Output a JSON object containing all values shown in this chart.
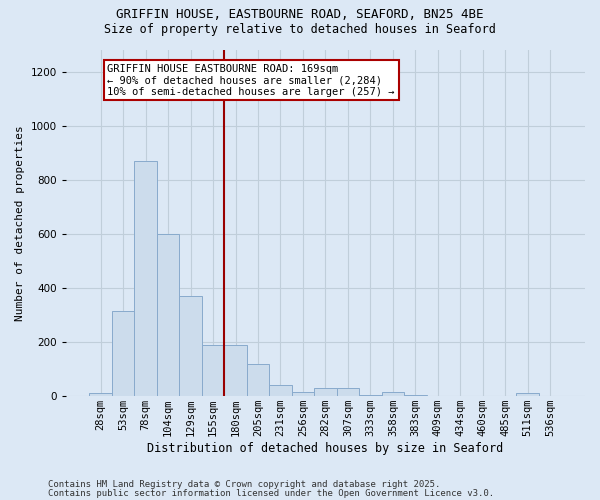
{
  "title_line1": "GRIFFIN HOUSE, EASTBOURNE ROAD, SEAFORD, BN25 4BE",
  "title_line2": "Size of property relative to detached houses in Seaford",
  "xlabel": "Distribution of detached houses by size in Seaford",
  "ylabel": "Number of detached properties",
  "categories": [
    "28sqm",
    "53sqm",
    "78sqm",
    "104sqm",
    "129sqm",
    "155sqm",
    "180sqm",
    "205sqm",
    "231sqm",
    "256sqm",
    "282sqm",
    "307sqm",
    "333sqm",
    "358sqm",
    "383sqm",
    "409sqm",
    "434sqm",
    "460sqm",
    "485sqm",
    "511sqm",
    "536sqm"
  ],
  "values": [
    10,
    315,
    870,
    600,
    370,
    190,
    190,
    120,
    40,
    15,
    30,
    30,
    5,
    15,
    5,
    0,
    0,
    0,
    0,
    10,
    0
  ],
  "bar_color": "#ccdcec",
  "bar_edgecolor": "#88aacc",
  "background_color": "#dce8f5",
  "grid_color": "#c0ceda",
  "vline_color": "#990000",
  "vline_bin": 5,
  "annotation_text": "GRIFFIN HOUSE EASTBOURNE ROAD: 169sqm\n← 90% of detached houses are smaller (2,284)\n10% of semi-detached houses are larger (257) →",
  "annotation_box_facecolor": "#ffffff",
  "annotation_box_edgecolor": "#aa0000",
  "footer_line1": "Contains HM Land Registry data © Crown copyright and database right 2025.",
  "footer_line2": "Contains public sector information licensed under the Open Government Licence v3.0.",
  "ylim": [
    0,
    1280
  ],
  "yticks": [
    0,
    200,
    400,
    600,
    800,
    1000,
    1200
  ],
  "title_fontsize": 9,
  "subtitle_fontsize": 8.5,
  "ylabel_fontsize": 8,
  "xlabel_fontsize": 8.5,
  "tick_fontsize": 7.5,
  "annot_fontsize": 7.5,
  "footer_fontsize": 6.5
}
